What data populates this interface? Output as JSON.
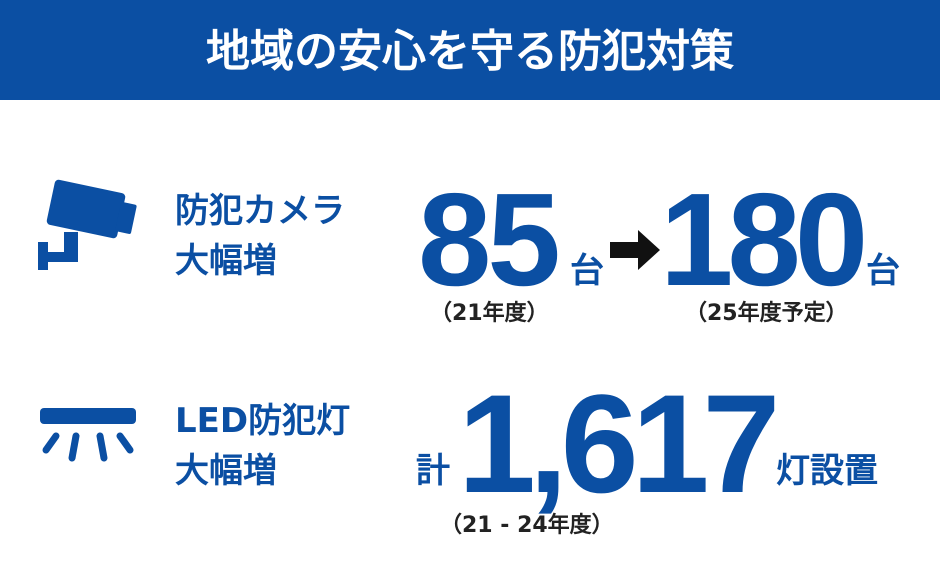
{
  "header": {
    "title": "地域の安心を守る防犯対策"
  },
  "camera": {
    "label": [
      "防犯カメラ",
      "大幅増"
    ],
    "from": {
      "number": "85",
      "unit": "台",
      "note": "（21年度）"
    },
    "to": {
      "number": "180",
      "unit": "台",
      "note": "（25年度予定）"
    }
  },
  "light": {
    "label": [
      "LED防犯灯",
      "大幅増"
    ],
    "prefix": "計",
    "number": "1,617",
    "suffix": "灯設置",
    "note": "（21 - 24年度）"
  }
}
